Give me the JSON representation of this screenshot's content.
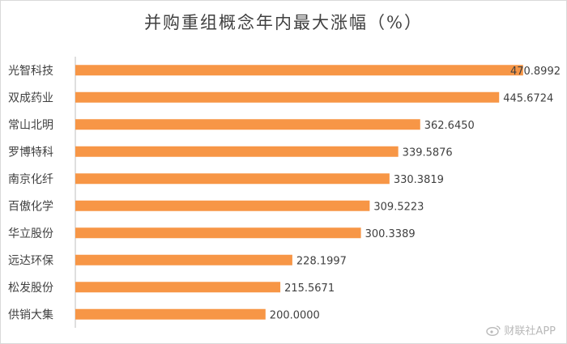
{
  "chart_data": {
    "type": "bar",
    "orientation": "horizontal",
    "title": "并购重组概念年内最大涨幅（%）",
    "categories": [
      "光智科技",
      "双成药业",
      "常山北明",
      "罗博特科",
      "南京化纤",
      "百傲化学",
      "华立股份",
      "远达环保",
      "松发股份",
      "供销大集"
    ],
    "values": [
      470.8992,
      445.6724,
      362.645,
      339.5876,
      330.3819,
      309.5223,
      300.3389,
      228.1997,
      215.5671,
      200.0
    ],
    "value_labels": [
      "470.8992",
      "445.6724",
      "362.6450",
      "339.5876",
      "330.3819",
      "309.5223",
      "300.3389",
      "228.1997",
      "215.5671",
      "200.0000"
    ],
    "xlim": [
      0,
      500
    ],
    "xlabel": "",
    "ylabel": "",
    "grid": false,
    "bar_color": "#F79646"
  },
  "watermark": "财联社APP",
  "watermark_icon": "weibo-icon"
}
